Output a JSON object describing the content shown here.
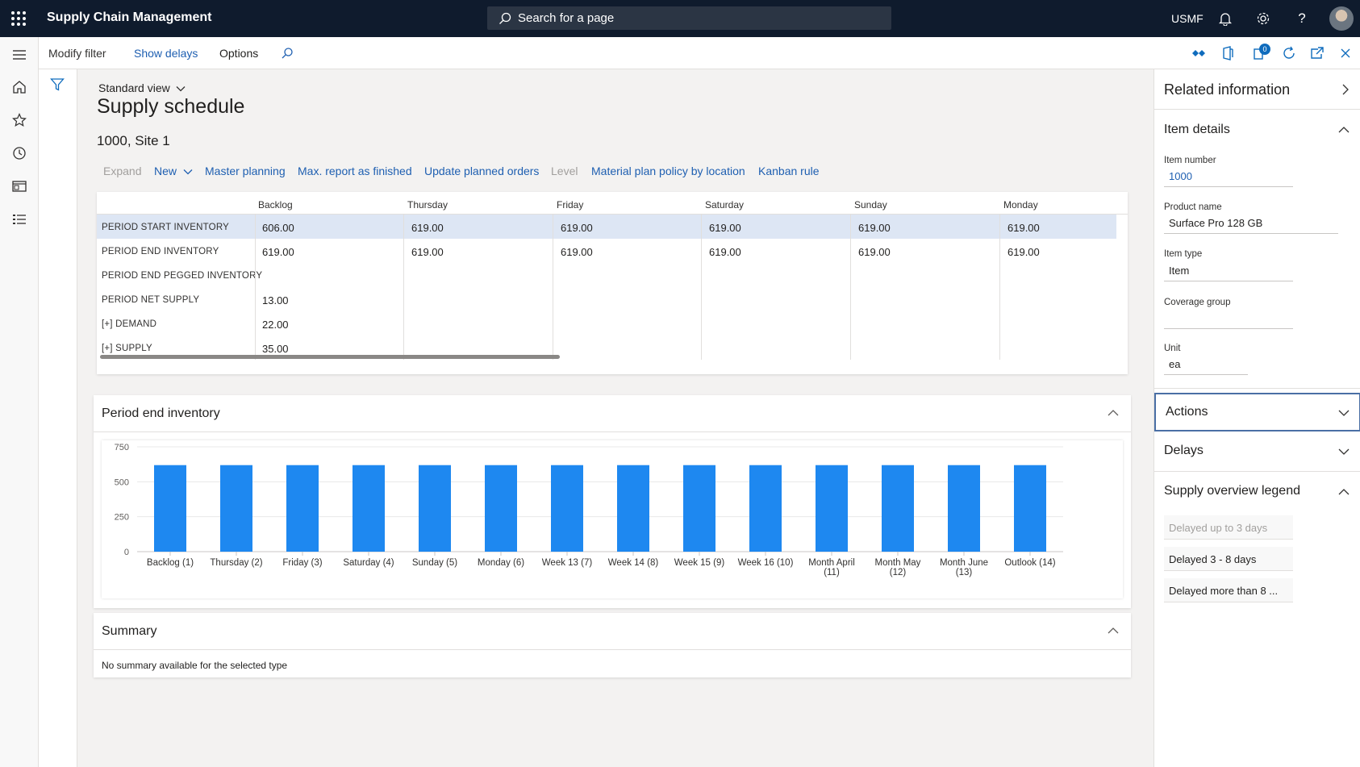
{
  "topbar": {
    "app_name": "Supply Chain Management",
    "search_placeholder": "Search for a page",
    "company": "USMF"
  },
  "actionbar": {
    "modify_filter": "Modify filter",
    "show_delays": "Show delays",
    "options": "Options",
    "badge": "0"
  },
  "page": {
    "view_name": "Standard view",
    "title": "Supply schedule",
    "subtitle": "1000, Site 1"
  },
  "commands": [
    {
      "label": "Expand",
      "disabled": true
    },
    {
      "label": "New",
      "disabled": false
    },
    {
      "label": "Master planning",
      "disabled": false
    },
    {
      "label": "Max. report as finished",
      "disabled": false
    },
    {
      "label": "Update planned orders",
      "disabled": false
    },
    {
      "label": "Level",
      "disabled": true
    },
    {
      "label": "Material plan policy by location",
      "disabled": false
    },
    {
      "label": "Kanban rule",
      "disabled": false
    }
  ],
  "grid": {
    "columns": [
      "Backlog",
      "Thursday",
      "Friday",
      "Saturday",
      "Sunday",
      "Monday"
    ],
    "rows": [
      {
        "label": "PERIOD START INVENTORY",
        "values": [
          "606.00",
          "619.00",
          "619.00",
          "619.00",
          "619.00",
          "619.00"
        ],
        "selected": true
      },
      {
        "label": "PERIOD END INVENTORY",
        "values": [
          "619.00",
          "619.00",
          "619.00",
          "619.00",
          "619.00",
          "619.00"
        ],
        "selected": false
      },
      {
        "label": "PERIOD END PEGGED INVENTORY",
        "values": [
          "",
          "",
          "",
          "",
          "",
          ""
        ],
        "selected": false
      },
      {
        "label": "PERIOD NET SUPPLY",
        "values": [
          "13.00",
          "",
          "",
          "",
          "",
          ""
        ],
        "selected": false
      },
      {
        "label": "[+] DEMAND",
        "values": [
          "22.00",
          "",
          "",
          "",
          "",
          ""
        ],
        "selected": false
      },
      {
        "label": "[+] SUPPLY",
        "values": [
          "35.00",
          "",
          "",
          "",
          "",
          ""
        ],
        "selected": false
      }
    ]
  },
  "chart_panel": {
    "title": "Period end inventory"
  },
  "chart_data": {
    "type": "bar",
    "categories": [
      [
        "Backlog (1)"
      ],
      [
        "Thursday (2)"
      ],
      [
        "Friday (3)"
      ],
      [
        "Saturday (4)"
      ],
      [
        "Sunday (5)"
      ],
      [
        "Monday (6)"
      ],
      [
        "Week 13 (7)"
      ],
      [
        "Week 14 (8)"
      ],
      [
        "Week 15 (9)"
      ],
      [
        "Week 16 (10)"
      ],
      [
        "Month April",
        "(11)"
      ],
      [
        "Month May",
        "(12)"
      ],
      [
        "Month June",
        "(13)"
      ],
      [
        "Outlook (14)"
      ]
    ],
    "values": [
      619,
      619,
      619,
      619,
      619,
      619,
      619,
      619,
      619,
      619,
      619,
      619,
      619,
      619
    ],
    "ylim": [
      0,
      750
    ],
    "yticks": [
      0,
      250,
      500,
      750
    ],
    "color": "#1e88f0",
    "grid": true
  },
  "summary_panel": {
    "title": "Summary",
    "message": "No summary available for the selected type"
  },
  "related": {
    "title": "Related information",
    "item_details": {
      "title": "Item details",
      "item_number_label": "Item number",
      "item_number": "1000",
      "product_name_label": "Product name",
      "product_name": "Surface Pro 128 GB",
      "item_type_label": "Item type",
      "item_type": "Item",
      "coverage_group_label": "Coverage group",
      "coverage_group": "",
      "unit_label": "Unit",
      "unit": "ea"
    },
    "actions_title": "Actions",
    "delays_title": "Delays",
    "legend": {
      "title": "Supply overview legend",
      "items": [
        "Delayed up to 3 days",
        "Delayed 3 - 8 days",
        "Delayed more than 8 ..."
      ]
    }
  }
}
